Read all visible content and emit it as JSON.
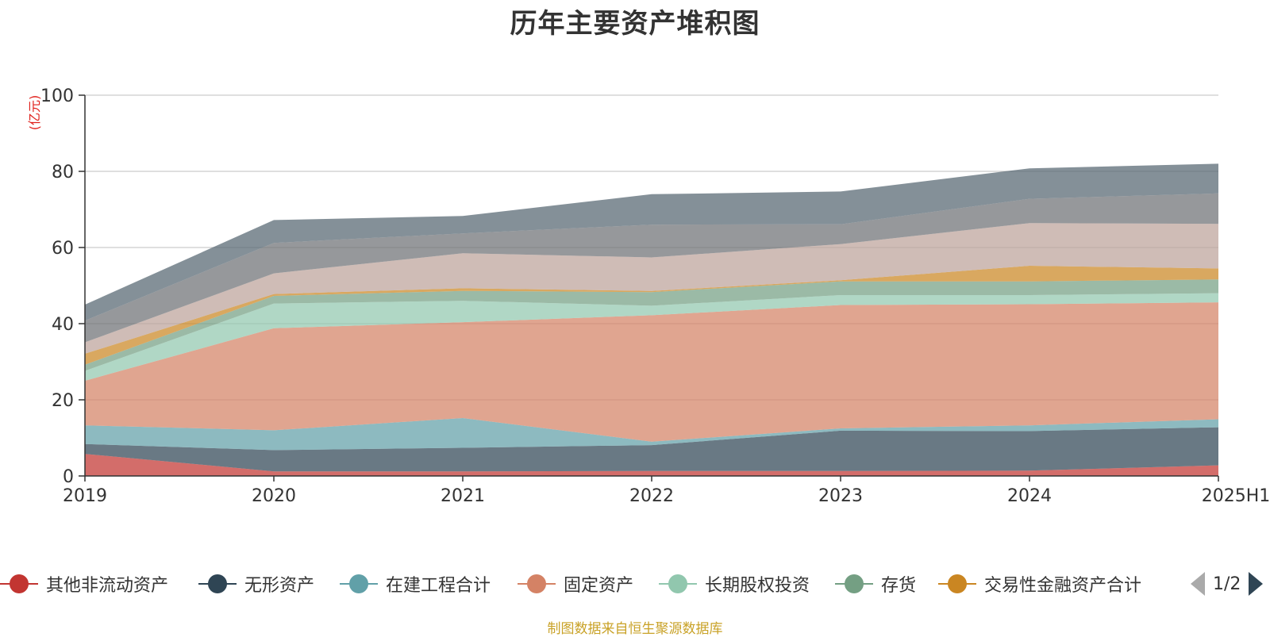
{
  "chart_data": {
    "type": "area",
    "title": "历年主要资产堆积图",
    "unit_label": "(亿元)",
    "categories": [
      "2019",
      "2020",
      "2021",
      "2022",
      "2023",
      "2024",
      "2025H1"
    ],
    "ylim": [
      0,
      100
    ],
    "yticks": [
      0,
      20,
      40,
      60,
      80,
      100
    ],
    "grid": true,
    "stacked": true,
    "legend_position": "bottom",
    "series": [
      {
        "name": "其他非流动资产",
        "color": "#c23531",
        "values": [
          5.8,
          1.2,
          1.2,
          1.3,
          1.3,
          1.4,
          2.8
        ]
      },
      {
        "name": "无形资产",
        "color": "#2f4554",
        "values": [
          2.6,
          5.6,
          6.2,
          6.8,
          10.6,
          10.4,
          10.0
        ]
      },
      {
        "name": "在建工程合计",
        "color": "#61a0a8",
        "values": [
          4.9,
          5.2,
          7.8,
          0.9,
          0.6,
          1.5,
          2.1
        ]
      },
      {
        "name": "固定资产",
        "color": "#d48265",
        "values": [
          11.7,
          26.8,
          25.2,
          33.2,
          32.4,
          31.8,
          30.7
        ]
      },
      {
        "name": "长期股权投资",
        "color": "#91c7ae",
        "values": [
          2.6,
          6.5,
          5.6,
          2.5,
          2.6,
          2.4,
          2.4
        ]
      },
      {
        "name": "存货",
        "color": "#749f83",
        "values": [
          1.6,
          2.0,
          2.6,
          3.6,
          3.6,
          3.6,
          3.6
        ]
      },
      {
        "name": "交易性金融资产合计",
        "color": "#ca8622",
        "values": [
          2.9,
          0.5,
          0.7,
          0.3,
          0.3,
          4.1,
          2.9
        ]
      },
      {
        "name": "",
        "color": "#bda29a",
        "values": [
          3.0,
          5.4,
          9.2,
          8.8,
          9.5,
          11.2,
          11.7
        ]
      },
      {
        "name": "",
        "color": "#6e7074",
        "values": [
          5.7,
          8.0,
          5.2,
          8.6,
          5.2,
          6.4,
          8.0
        ]
      },
      {
        "name": "",
        "color": "#546570",
        "values": [
          4.2,
          6.0,
          4.6,
          8.0,
          8.6,
          8.0,
          7.8
        ]
      }
    ]
  },
  "legend": {
    "items": [
      {
        "label": "其他非流动资产",
        "color": "#c23531"
      },
      {
        "label": "无形资产",
        "color": "#2f4554"
      },
      {
        "label": "在建工程合计",
        "color": "#61a0a8"
      },
      {
        "label": "固定资产",
        "color": "#d48265"
      },
      {
        "label": "长期股权投资",
        "color": "#91c7ae"
      },
      {
        "label": "存货",
        "color": "#749f83"
      },
      {
        "label": "交易性金融资产合计",
        "color": "#ca8622"
      }
    ],
    "pager": "1/2"
  },
  "source_note": "制图数据来自恒生聚源数据库"
}
